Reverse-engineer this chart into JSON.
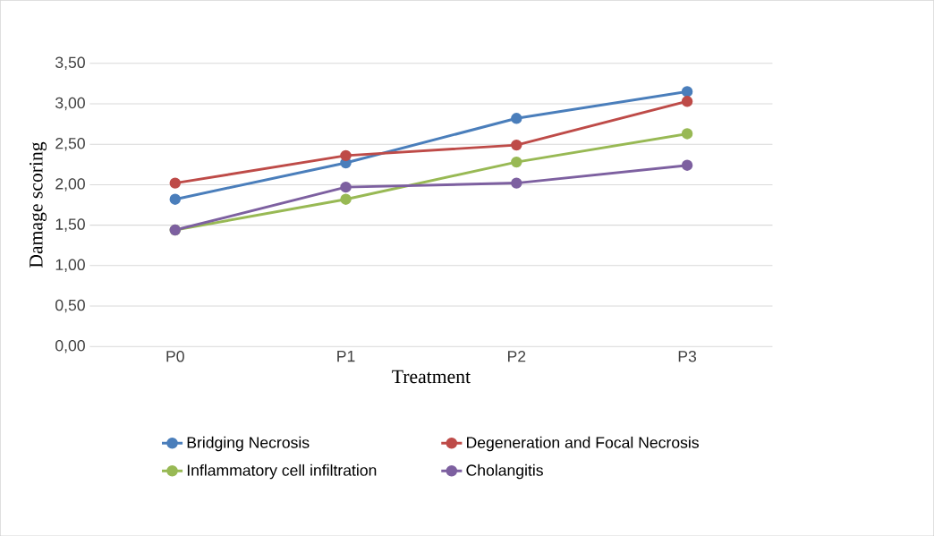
{
  "chart_data": {
    "type": "line",
    "xlabel": "Treatment",
    "ylabel": "Damage scoring",
    "categories": [
      "P0",
      "P1",
      "P2",
      "P3"
    ],
    "series": [
      {
        "name": "Bridging Necrosis",
        "color": "#4a7ebb",
        "values": [
          1.82,
          2.27,
          2.82,
          3.15
        ]
      },
      {
        "name": "Degeneration and Focal Necrosis",
        "color": "#be4b48",
        "values": [
          2.02,
          2.36,
          2.49,
          3.03
        ]
      },
      {
        "name": "Inflammatory cell infiltration",
        "color": "#98b954",
        "values": [
          1.44,
          1.82,
          2.28,
          2.63
        ]
      },
      {
        "name": "Cholangitis",
        "color": "#7d60a0",
        "values": [
          1.44,
          1.97,
          2.02,
          2.24
        ]
      }
    ],
    "ylim": [
      0,
      3.5
    ],
    "yticks": [
      {
        "value": 0,
        "label": "0,00"
      },
      {
        "value": 0.5,
        "label": "0,50"
      },
      {
        "value": 1,
        "label": "1,00"
      },
      {
        "value": 1.5,
        "label": "1,50"
      },
      {
        "value": 2,
        "label": "2,00"
      },
      {
        "value": 2.5,
        "label": "2,50"
      },
      {
        "value": 3,
        "label": "3,00"
      },
      {
        "value": 3.5,
        "label": "3,50"
      }
    ],
    "grid": "y",
    "legend": "bottom",
    "marker": "circle",
    "line_style": "solid"
  }
}
